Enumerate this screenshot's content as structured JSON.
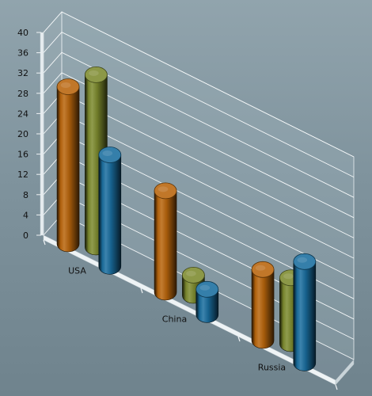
{
  "chart_data": {
    "type": "bar",
    "categories": [
      "USA",
      "China",
      "Russia"
    ],
    "series": [
      {
        "values": [
          31,
          20,
          14
        ],
        "color": "#b8650c"
      },
      {
        "values": [
          34,
          4,
          13
        ],
        "color": "#7c8a2e"
      },
      {
        "values": [
          22,
          5,
          20
        ],
        "color": "#1a6d9e"
      }
    ],
    "yticks": [
      "0",
      "4",
      "8",
      "12",
      "16",
      "20",
      "24",
      "28",
      "32",
      "36",
      "40"
    ],
    "ylim": [
      0,
      40
    ],
    "grid": true,
    "legend": "none"
  }
}
